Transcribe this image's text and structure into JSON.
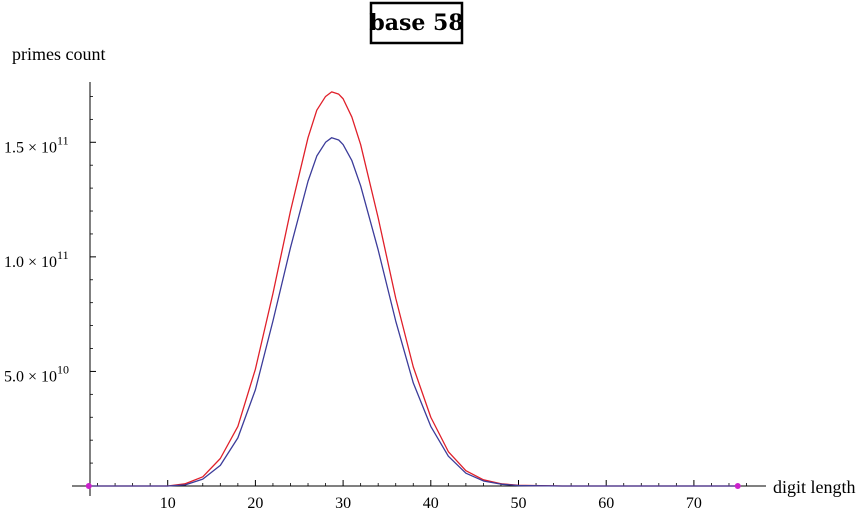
{
  "chart_data": {
    "type": "line",
    "title": "base 58",
    "xlabel": "digit length",
    "ylabel": "primes count",
    "xlim": [
      0,
      77
    ],
    "ylim": [
      0,
      175000000000.0
    ],
    "x_ticks": [
      10,
      20,
      30,
      40,
      50,
      60,
      70
    ],
    "y_ticks": [
      {
        "value": 50000000000.0,
        "mantissa": "5.0",
        "exponent": "10"
      },
      {
        "value": 100000000000.0,
        "mantissa": "1.0",
        "exponent": "11"
      },
      {
        "value": 150000000000.0,
        "mantissa": "1.5",
        "exponent": "11"
      }
    ],
    "times_symbol": "×",
    "base": "10",
    "grid": false,
    "series": [
      {
        "color": "#e0202a",
        "x": [
          1,
          5,
          10,
          12,
          14,
          16,
          18,
          20,
          22,
          24,
          26,
          27,
          28,
          28.7,
          29.5,
          30,
          31,
          32,
          34,
          36,
          38,
          40,
          42,
          44,
          46,
          48,
          50,
          55,
          60,
          65,
          70,
          75
        ],
        "y": [
          0,
          0,
          0,
          1000000000.0,
          4000000000.0,
          12000000000.0,
          26000000000.0,
          51000000000.0,
          84000000000.0,
          120000000000.0,
          152000000000.0,
          164000000000.0,
          170000000000.0,
          172000000000.0,
          171000000000.0,
          169000000000.0,
          161000000000.0,
          149000000000.0,
          117000000000.0,
          82000000000.0,
          52000000000.0,
          30000000000.0,
          15000000000.0,
          6700000000.0,
          2700000000.0,
          1000000000.0,
          300000000.0,
          0,
          0,
          0,
          0,
          0
        ]
      },
      {
        "color": "#3c3c9a",
        "x": [
          1,
          5,
          10,
          12,
          14,
          16,
          18,
          20,
          22,
          24,
          26,
          27,
          28,
          28.7,
          29.5,
          30,
          31,
          32,
          34,
          36,
          38,
          40,
          42,
          44,
          46,
          48,
          50,
          55,
          60,
          65,
          70,
          75
        ],
        "y": [
          0,
          0,
          0,
          500000000.0,
          3000000000.0,
          9000000000.0,
          21000000000.0,
          42000000000.0,
          72000000000.0,
          104000000000.0,
          133000000000.0,
          144000000000.0,
          150000000000.0,
          152000000000.0,
          151000000000.0,
          149000000000.0,
          142000000000.0,
          131000000000.0,
          103000000000.0,
          72000000000.0,
          45000000000.0,
          26000000000.0,
          13000000000.0,
          5600000000.0,
          2200000000.0,
          800000000.0,
          200000000.0,
          0,
          0,
          0,
          0,
          0
        ]
      }
    ],
    "markers": {
      "color": "#cc22cc",
      "points": [
        [
          1,
          0
        ],
        [
          75,
          0
        ]
      ]
    }
  }
}
